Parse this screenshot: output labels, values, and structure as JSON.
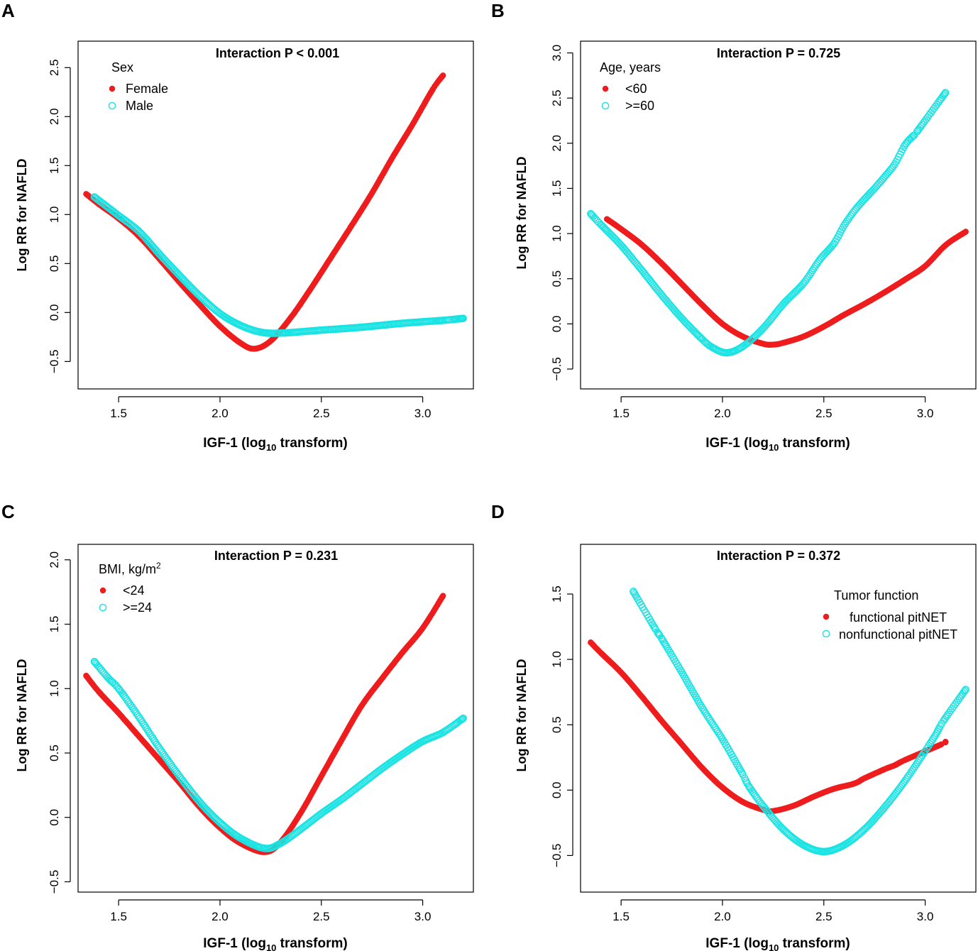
{
  "colors": {
    "series1": "#ee1c1c",
    "series2": "#19e3e3"
  },
  "chart_data": [
    {
      "panel": "A",
      "type": "scatter",
      "title": "Interaction P < 0.001",
      "xlabel": "IGF-1 (log",
      "xlabel_sub": "10",
      "xlabel_tail": " transform)",
      "ylabel": "Log RR for NAFLD",
      "xlim": [
        1.3,
        3.25
      ],
      "ylim": [
        -0.78,
        2.77
      ],
      "xticks": [
        1.5,
        2.0,
        2.5,
        3.0
      ],
      "xtick_labels": [
        "1.5",
        "2.0",
        "2.5",
        "3.0"
      ],
      "yticks": [
        -0.5,
        0.0,
        0.5,
        1.0,
        1.5,
        2.0,
        2.5
      ],
      "ytick_labels": [
        "−0.5",
        "0.0",
        "0.5",
        "1.0",
        "1.5",
        "2.0",
        "2.5"
      ],
      "legend": {
        "title": "Sex",
        "title_sup": "",
        "position": "top-left"
      },
      "series": [
        {
          "name": "Female",
          "marker": "filled",
          "min_x": 2.17,
          "min_y": -0.37,
          "points": [
            [
              1.34,
              1.21
            ],
            [
              1.4,
              1.11
            ],
            [
              1.5,
              0.96
            ],
            [
              1.6,
              0.78
            ],
            [
              1.7,
              0.55
            ],
            [
              1.8,
              0.31
            ],
            [
              1.9,
              0.08
            ],
            [
              2.0,
              -0.14
            ],
            [
              2.1,
              -0.31
            ],
            [
              2.17,
              -0.37
            ],
            [
              2.25,
              -0.29
            ],
            [
              2.35,
              -0.05
            ],
            [
              2.45,
              0.25
            ],
            [
              2.55,
              0.57
            ],
            [
              2.65,
              0.89
            ],
            [
              2.75,
              1.22
            ],
            [
              2.85,
              1.58
            ],
            [
              2.95,
              1.92
            ],
            [
              3.05,
              2.28
            ],
            [
              3.1,
              2.42
            ]
          ]
        },
        {
          "name": "Male",
          "marker": "open",
          "min_x": 2.3,
          "min_y": -0.21,
          "points": [
            [
              1.38,
              1.18
            ],
            [
              1.45,
              1.07
            ],
            [
              1.5,
              0.99
            ],
            [
              1.6,
              0.83
            ],
            [
              1.7,
              0.6
            ],
            [
              1.8,
              0.38
            ],
            [
              1.9,
              0.17
            ],
            [
              2.0,
              -0.01
            ],
            [
              2.1,
              -0.13
            ],
            [
              2.2,
              -0.2
            ],
            [
              2.3,
              -0.21
            ],
            [
              2.5,
              -0.18
            ],
            [
              2.7,
              -0.15
            ],
            [
              2.9,
              -0.11
            ],
            [
              3.1,
              -0.08
            ],
            [
              3.2,
              -0.06
            ]
          ]
        }
      ]
    },
    {
      "panel": "B",
      "type": "scatter",
      "title": "Interaction P = 0.725",
      "xlabel": "IGF-1 (log",
      "xlabel_sub": "10",
      "xlabel_tail": " transform)",
      "ylabel": "Log RR for NAFLD",
      "xlim": [
        1.3,
        3.25
      ],
      "ylim": [
        -0.72,
        3.13
      ],
      "xticks": [
        1.5,
        2.0,
        2.5,
        3.0
      ],
      "xtick_labels": [
        "1.5",
        "2.0",
        "2.5",
        "3.0"
      ],
      "yticks": [
        -0.5,
        0.0,
        0.5,
        1.0,
        1.5,
        2.0,
        2.5,
        3.0
      ],
      "ytick_labels": [
        "−0.5",
        "0.0",
        "0.5",
        "1.0",
        "1.5",
        "2.0",
        "2.5",
        "3.0"
      ],
      "legend": {
        "title": "Age, years",
        "title_sup": "",
        "position": "top-left"
      },
      "series": [
        {
          "name": "<60",
          "marker": "filled",
          "min_x": 2.25,
          "min_y": -0.23,
          "points": [
            [
              1.43,
              1.16
            ],
            [
              1.5,
              1.05
            ],
            [
              1.6,
              0.88
            ],
            [
              1.7,
              0.67
            ],
            [
              1.8,
              0.44
            ],
            [
              1.9,
              0.21
            ],
            [
              2.0,
              0.0
            ],
            [
              2.1,
              -0.14
            ],
            [
              2.2,
              -0.22
            ],
            [
              2.25,
              -0.23
            ],
            [
              2.3,
              -0.21
            ],
            [
              2.4,
              -0.14
            ],
            [
              2.5,
              -0.03
            ],
            [
              2.6,
              0.1
            ],
            [
              2.7,
              0.22
            ],
            [
              2.8,
              0.35
            ],
            [
              2.9,
              0.49
            ],
            [
              3.0,
              0.64
            ],
            [
              3.1,
              0.87
            ],
            [
              3.2,
              1.02
            ]
          ]
        },
        {
          "name": ">=60",
          "marker": "open",
          "min_x": 2.02,
          "min_y": -0.32,
          "points": [
            [
              1.35,
              1.22
            ],
            [
              1.4,
              1.1
            ],
            [
              1.5,
              0.87
            ],
            [
              1.6,
              0.6
            ],
            [
              1.7,
              0.32
            ],
            [
              1.8,
              0.06
            ],
            [
              1.9,
              -0.17
            ],
            [
              1.95,
              -0.26
            ],
            [
              2.02,
              -0.32
            ],
            [
              2.1,
              -0.25
            ],
            [
              2.2,
              -0.05
            ],
            [
              2.3,
              0.22
            ],
            [
              2.4,
              0.45
            ],
            [
              2.48,
              0.71
            ],
            [
              2.55,
              0.89
            ],
            [
              2.6,
              1.09
            ],
            [
              2.65,
              1.25
            ],
            [
              2.7,
              1.38
            ],
            [
              2.75,
              1.5
            ],
            [
              2.8,
              1.63
            ],
            [
              2.85,
              1.77
            ],
            [
              2.9,
              1.98
            ],
            [
              2.94,
              2.08
            ],
            [
              2.96,
              2.13
            ],
            [
              3.1,
              2.56
            ]
          ]
        }
      ]
    },
    {
      "panel": "C",
      "type": "scatter",
      "title": "Interaction P = 0.231",
      "xlabel": "IGF-1 (log",
      "xlabel_sub": "10",
      "xlabel_tail": " transform)",
      "ylabel": "Log RR for NAFLD",
      "xlim": [
        1.3,
        3.25
      ],
      "ylim": [
        -0.58,
        2.12
      ],
      "xticks": [
        1.5,
        2.0,
        2.5,
        3.0
      ],
      "xtick_labels": [
        "1.5",
        "2.0",
        "2.5",
        "3.0"
      ],
      "yticks": [
        -0.5,
        0.0,
        0.5,
        1.0,
        1.5,
        2.0
      ],
      "ytick_labels": [
        "−0.5",
        "0.0",
        "0.5",
        "1.0",
        "1.5",
        "2.0"
      ],
      "legend": {
        "title": "BMI, kg/m",
        "title_sup": "2",
        "position": "top-left"
      },
      "series": [
        {
          "name": "<24",
          "marker": "filled",
          "min_x": 2.22,
          "min_y": -0.27,
          "points": [
            [
              1.34,
              1.1
            ],
            [
              1.4,
              0.98
            ],
            [
              1.5,
              0.81
            ],
            [
              1.6,
              0.63
            ],
            [
              1.7,
              0.45
            ],
            [
              1.8,
              0.27
            ],
            [
              1.9,
              0.08
            ],
            [
              2.0,
              -0.08
            ],
            [
              2.1,
              -0.2
            ],
            [
              2.22,
              -0.27
            ],
            [
              2.3,
              -0.19
            ],
            [
              2.4,
              0.04
            ],
            [
              2.5,
              0.32
            ],
            [
              2.6,
              0.6
            ],
            [
              2.7,
              0.87
            ],
            [
              2.8,
              1.08
            ],
            [
              2.9,
              1.28
            ],
            [
              3.0,
              1.47
            ],
            [
              3.1,
              1.72
            ]
          ]
        },
        {
          "name": ">=24",
          "marker": "open",
          "min_x": 2.22,
          "min_y": -0.24,
          "points": [
            [
              1.38,
              1.21
            ],
            [
              1.45,
              1.08
            ],
            [
              1.5,
              1.0
            ],
            [
              1.6,
              0.78
            ],
            [
              1.7,
              0.54
            ],
            [
              1.8,
              0.32
            ],
            [
              1.9,
              0.12
            ],
            [
              2.0,
              -0.04
            ],
            [
              2.1,
              -0.16
            ],
            [
              2.22,
              -0.24
            ],
            [
              2.3,
              -0.2
            ],
            [
              2.4,
              -0.09
            ],
            [
              2.5,
              0.03
            ],
            [
              2.6,
              0.14
            ],
            [
              2.7,
              0.26
            ],
            [
              2.8,
              0.38
            ],
            [
              2.9,
              0.49
            ],
            [
              3.0,
              0.59
            ],
            [
              3.1,
              0.66
            ],
            [
              3.2,
              0.77
            ]
          ]
        }
      ]
    },
    {
      "panel": "D",
      "type": "scatter",
      "title": "Interaction P = 0.372",
      "xlabel": "IGF-1 (log",
      "xlabel_sub": "10",
      "xlabel_tail": " transform)",
      "ylabel": "Log RR for NAFLD",
      "xlim": [
        1.3,
        3.25
      ],
      "ylim": [
        -0.78,
        1.88
      ],
      "xticks": [
        1.5,
        2.0,
        2.5,
        3.0
      ],
      "xtick_labels": [
        "1.5",
        "2.0",
        "2.5",
        "3.0"
      ],
      "yticks": [
        -0.5,
        0.0,
        0.5,
        1.0,
        1.5
      ],
      "ytick_labels": [
        "−0.5",
        "0.0",
        "0.5",
        "1.0",
        "1.5"
      ],
      "legend": {
        "title": "Tumor function",
        "title_sup": "",
        "position": "top-right"
      },
      "series": [
        {
          "name": "functional pitNET",
          "marker": "filled",
          "min_x": 2.25,
          "min_y": -0.16,
          "points": [
            [
              1.35,
              1.13
            ],
            [
              1.4,
              1.05
            ],
            [
              1.5,
              0.9
            ],
            [
              1.6,
              0.72
            ],
            [
              1.7,
              0.53
            ],
            [
              1.8,
              0.35
            ],
            [
              1.9,
              0.17
            ],
            [
              2.0,
              0.02
            ],
            [
              2.1,
              -0.09
            ],
            [
              2.2,
              -0.15
            ],
            [
              2.25,
              -0.16
            ],
            [
              2.35,
              -0.12
            ],
            [
              2.45,
              -0.05
            ],
            [
              2.55,
              0.01
            ],
            [
              2.65,
              0.05
            ],
            [
              2.7,
              0.09
            ],
            [
              2.8,
              0.16
            ],
            [
              2.85,
              0.19
            ],
            [
              2.9,
              0.23
            ],
            [
              3.08,
              0.35
            ],
            [
              3.1,
              0.37
            ]
          ]
        },
        {
          "name": "nonfunctional pitNET",
          "marker": "open",
          "min_x": 2.5,
          "min_y": -0.47,
          "points": [
            [
              1.56,
              1.52
            ],
            [
              1.67,
              1.23
            ],
            [
              1.7,
              1.16
            ],
            [
              1.8,
              0.9
            ],
            [
              1.9,
              0.63
            ],
            [
              2.0,
              0.39
            ],
            [
              2.1,
              0.12
            ],
            [
              2.13,
              0.03
            ],
            [
              2.2,
              -0.12
            ],
            [
              2.3,
              -0.3
            ],
            [
              2.4,
              -0.42
            ],
            [
              2.5,
              -0.47
            ],
            [
              2.6,
              -0.42
            ],
            [
              2.7,
              -0.3
            ],
            [
              2.8,
              -0.13
            ],
            [
              2.9,
              0.07
            ],
            [
              3.0,
              0.3
            ],
            [
              3.05,
              0.42
            ],
            [
              3.09,
              0.53
            ],
            [
              3.2,
              0.77
            ]
          ]
        }
      ]
    }
  ]
}
